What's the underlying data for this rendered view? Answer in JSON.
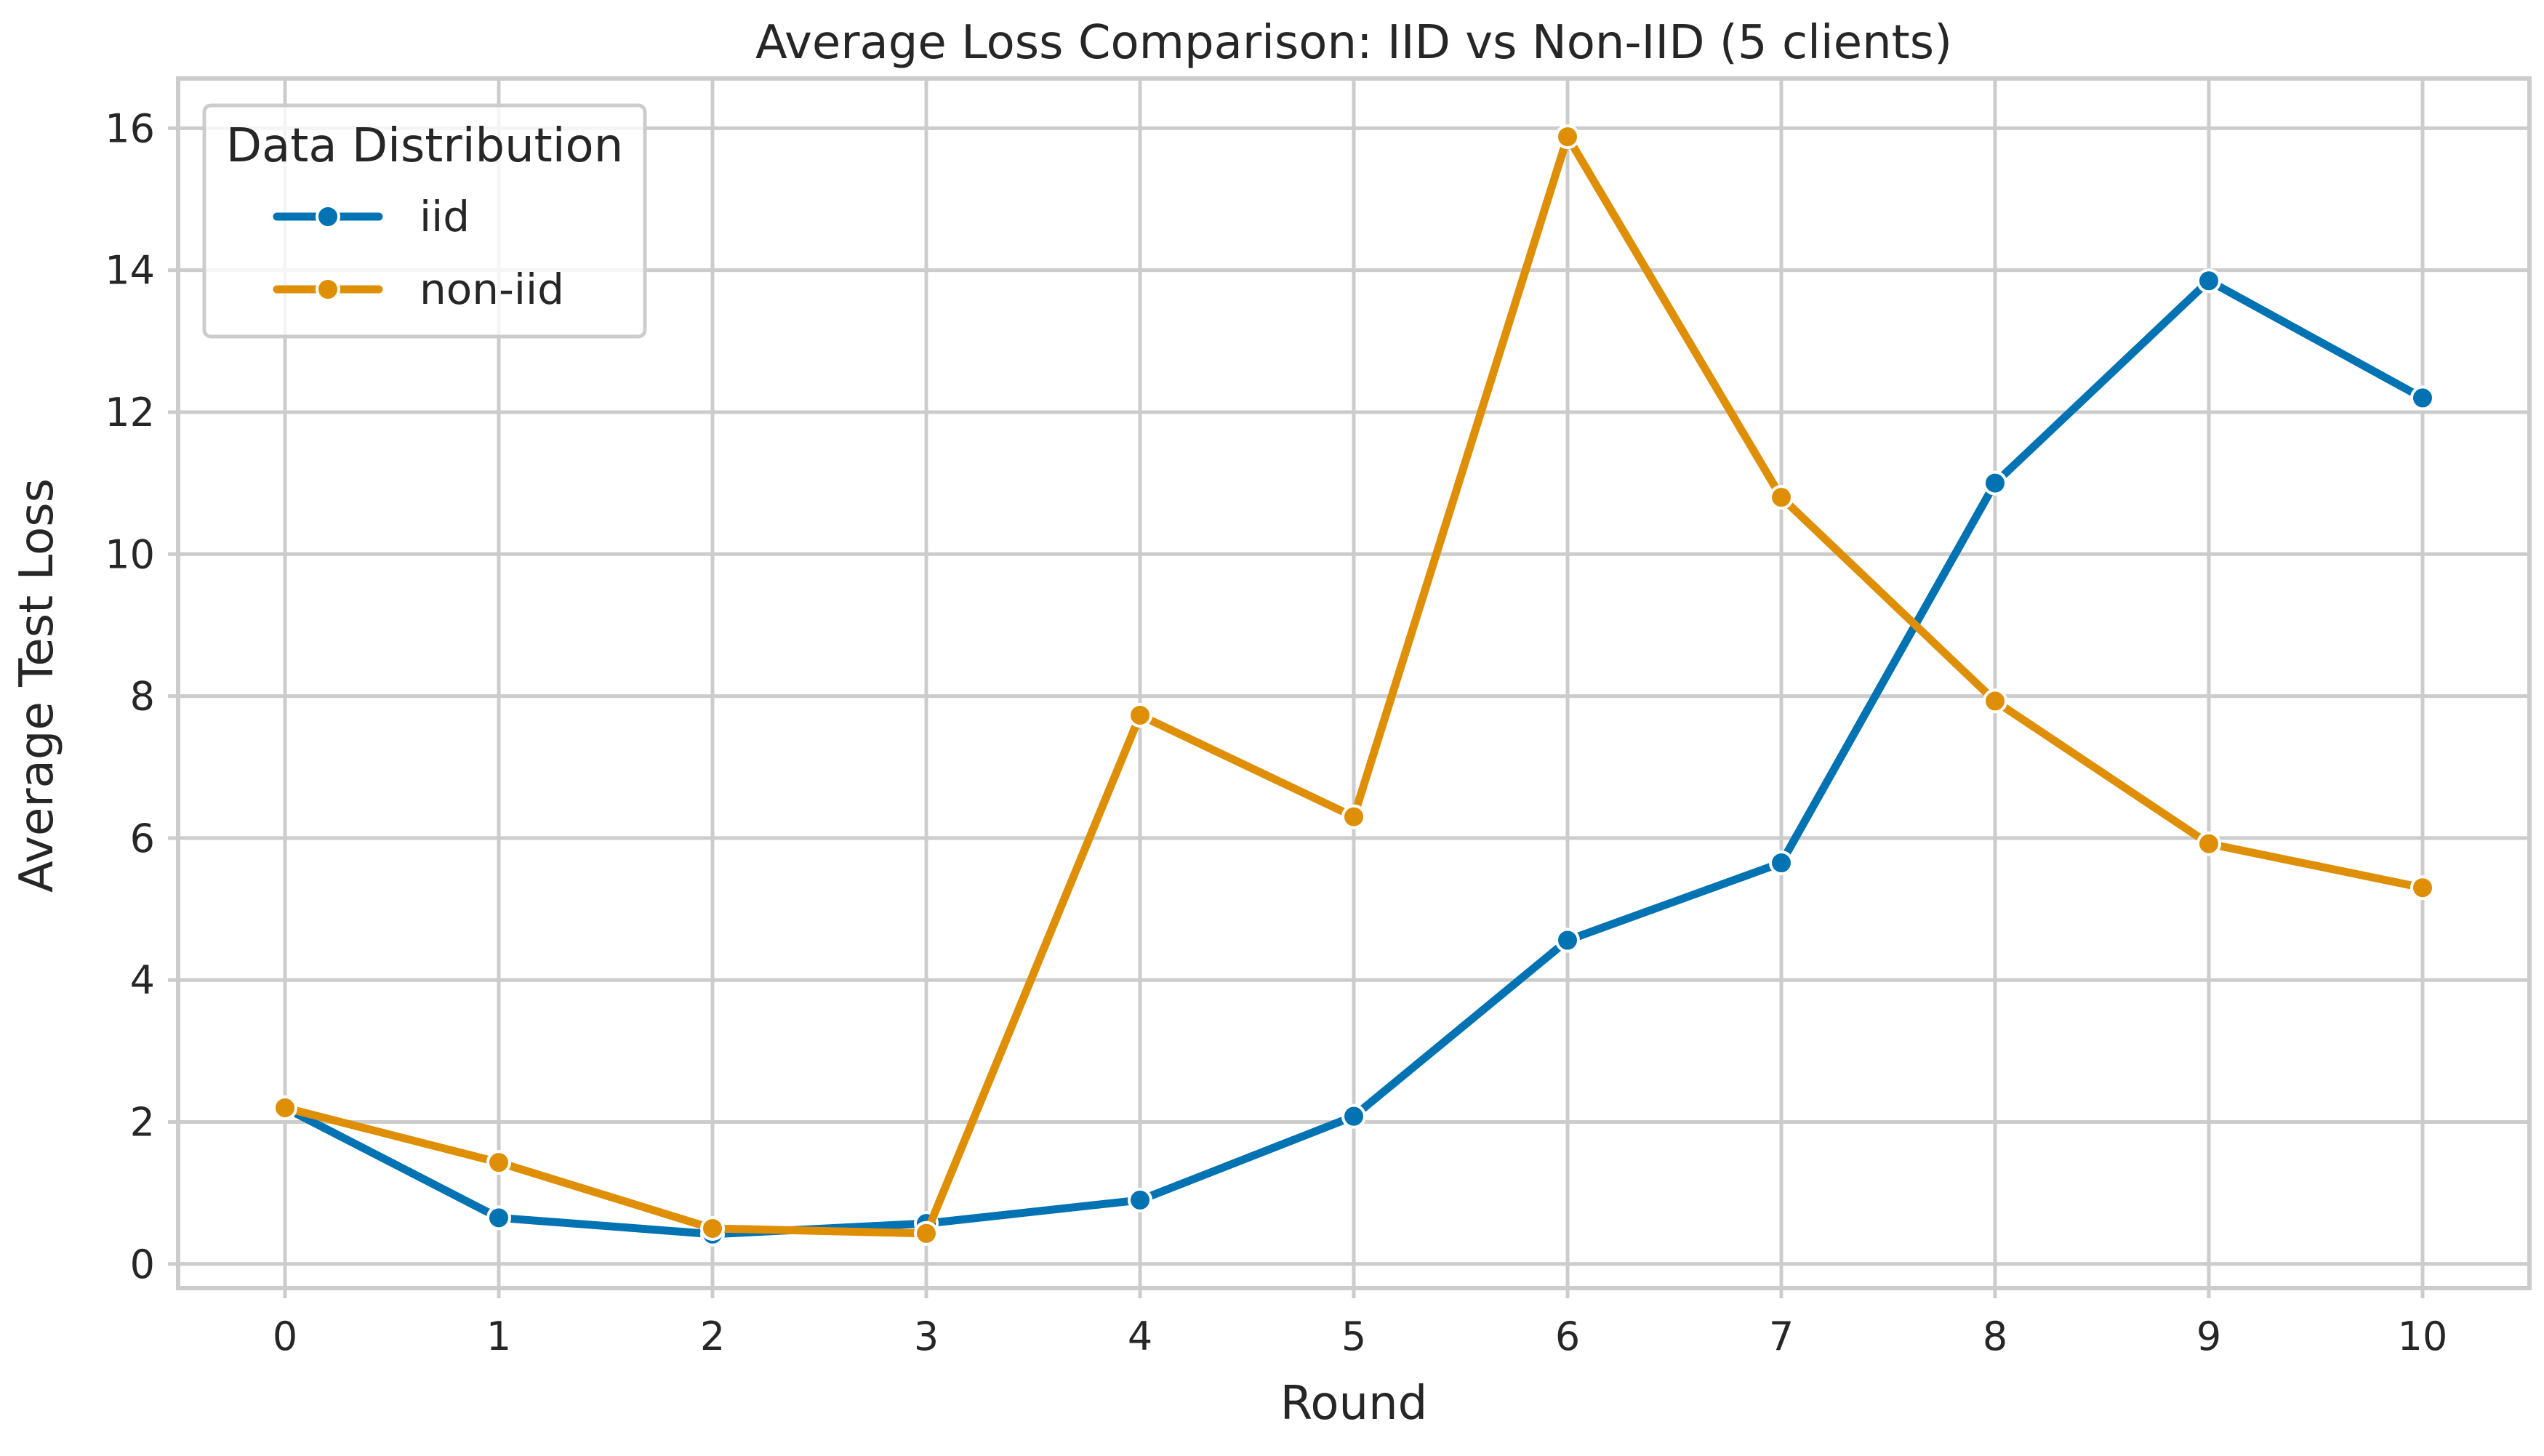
{
  "chart_data": {
    "type": "line",
    "title": "Average Loss Comparison: IID vs Non-IID (5 clients)",
    "xlabel": "Round",
    "ylabel": "Average Test Loss",
    "x": [
      0,
      1,
      2,
      3,
      4,
      5,
      6,
      7,
      8,
      9,
      10
    ],
    "xlim": [
      -0.5,
      10.5
    ],
    "ylim": [
      -0.34,
      16.7
    ],
    "xticks": [
      0,
      1,
      2,
      3,
      4,
      5,
      6,
      7,
      8,
      9,
      10
    ],
    "yticks": [
      0,
      2,
      4,
      6,
      8,
      10,
      12,
      14,
      16
    ],
    "grid": true,
    "legend": {
      "title": "Data Distribution",
      "placement": "top-left"
    },
    "series": [
      {
        "name": "iid",
        "color": "#0173b2",
        "marker": "circle",
        "values": [
          2.2,
          0.65,
          0.42,
          0.57,
          0.9,
          2.08,
          4.56,
          5.65,
          11.0,
          13.85,
          12.2
        ]
      },
      {
        "name": "non-iid",
        "color": "#de8f05",
        "marker": "circle",
        "values": [
          2.2,
          1.43,
          0.5,
          0.43,
          7.73,
          6.3,
          15.88,
          10.8,
          7.93,
          5.92,
          5.3
        ]
      }
    ]
  }
}
